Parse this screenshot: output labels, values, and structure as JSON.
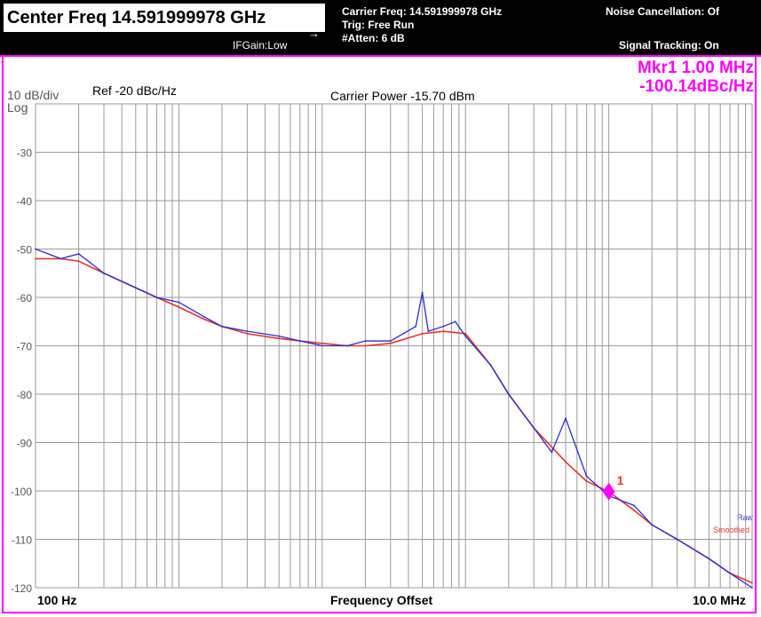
{
  "header": {
    "center_freq": "Center Freq 14.591999978 GHz",
    "ifgain": "IFGain:Low",
    "carrier_freq": "Carrier Freq: 14.591999978 GHz",
    "trig": "Trig: Free Run",
    "atten": "#Atten: 6 dB",
    "noise_cancel": "Noise Cancellation: Of",
    "signal_tracking": "Signal Tracking: On"
  },
  "plot": {
    "scale": "10 dB/div",
    "log": "Log",
    "ref": "Ref  -20 dBc/Hz",
    "carrier_power": "Carrier Power -15.70 dBm",
    "marker_freq": "Mkr1 1.00 MHz",
    "marker_val": "-100.14dBc/Hz",
    "marker_label": "1",
    "legend_raw": "Raw",
    "legend_smoothed": "Smoothed",
    "x_start": "100 Hz",
    "x_end": "10.0 MHz",
    "x_title": "Frequency Offset"
  },
  "colors": {
    "accent": "#ff00ff",
    "raw": "#2a2ad8",
    "smoothed": "#e8322a",
    "grid": "#9a9a9a"
  },
  "chart_data": {
    "type": "line",
    "x_scale": "log",
    "xlabel": "Frequency Offset",
    "ylabel": "dBc/Hz",
    "xlim": [
      100,
      10000000
    ],
    "ylim": [
      -120,
      -20
    ],
    "y_ticks": [
      -30,
      -40,
      -50,
      -60,
      -70,
      -80,
      -90,
      -100,
      -110,
      -120
    ],
    "series": [
      {
        "name": "Smoothed",
        "x": [
          100,
          150,
          200,
          300,
          500,
          700,
          1000,
          1500,
          2000,
          3000,
          5000,
          7000,
          10000,
          15000,
          20000,
          30000,
          50000,
          70000,
          100000,
          150000,
          200000,
          300000,
          500000,
          700000,
          1000000,
          1500000,
          2000000,
          3000000,
          5000000,
          7000000,
          10000000
        ],
        "values": [
          -52,
          -52,
          -52.5,
          -55,
          -58,
          -60,
          -62,
          -64.5,
          -66,
          -67.5,
          -68.5,
          -69,
          -69.5,
          -70,
          -70,
          -69.5,
          -67.5,
          -67,
          -67.5,
          -74,
          -80,
          -87,
          -94,
          -98,
          -100.14,
          -104,
          -107,
          -110,
          -114,
          -117,
          -119
        ]
      },
      {
        "name": "Raw",
        "x": [
          100,
          150,
          200,
          300,
          500,
          700,
          1000,
          1500,
          2000,
          3000,
          5000,
          7000,
          10000,
          15000,
          20000,
          30000,
          45000,
          50000,
          55000,
          70000,
          85000,
          100000,
          150000,
          200000,
          300000,
          400000,
          500000,
          700000,
          1000000,
          1500000,
          2000000,
          3000000,
          5000000,
          7000000,
          10000000
        ],
        "values": [
          -50,
          -52,
          -51,
          -55,
          -58,
          -60,
          -61,
          -64,
          -66,
          -67,
          -68,
          -69,
          -70,
          -70,
          -69,
          -69,
          -66,
          -59,
          -67,
          -66,
          -65,
          -68,
          -74,
          -80,
          -87,
          -92,
          -85,
          -97,
          -101,
          -103,
          -107,
          -110,
          -114,
          -117,
          -120
        ]
      }
    ],
    "marker": {
      "label": "1",
      "x": 1000000,
      "y": -100.14
    },
    "legend": [
      "Raw",
      "Smoothed"
    ],
    "legend_position": "right"
  }
}
